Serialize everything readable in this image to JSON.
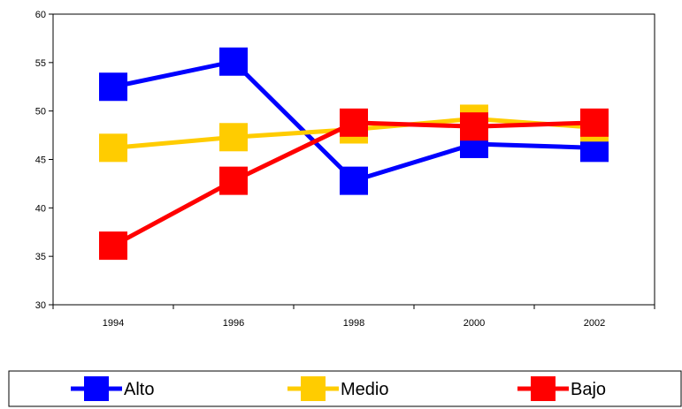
{
  "chart_data": {
    "type": "line",
    "title": "",
    "xlabel": "",
    "ylabel": "",
    "categories": [
      "1994",
      "1996",
      "1998",
      "2000",
      "2002"
    ],
    "ylim": [
      30,
      60
    ],
    "yticks": [
      30,
      35,
      40,
      45,
      50,
      55,
      60
    ],
    "grid": false,
    "legend_position": "bottom",
    "series": [
      {
        "name": "Alto",
        "color": "#0000ff",
        "values": [
          52.5,
          55.1,
          42.8,
          46.6,
          46.2
        ]
      },
      {
        "name": "Medio",
        "color": "#ffcc00",
        "values": [
          46.2,
          47.3,
          48.1,
          49.2,
          48.3
        ]
      },
      {
        "name": "Bajo",
        "color": "#ff0000",
        "values": [
          36.1,
          42.8,
          48.8,
          48.4,
          48.8
        ]
      }
    ]
  }
}
